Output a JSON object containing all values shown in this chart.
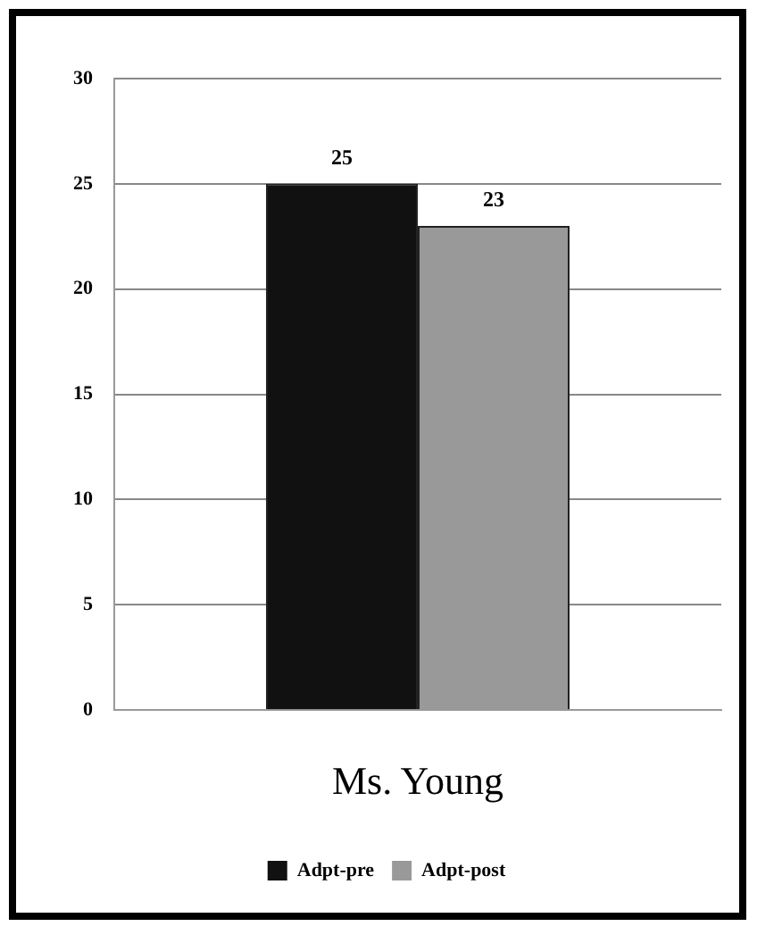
{
  "chart_data": {
    "type": "bar",
    "categories": [
      "Ms. Young"
    ],
    "series": [
      {
        "name": "Adpt-pre",
        "color": "#111111",
        "values": [
          25
        ]
      },
      {
        "name": "Adpt-post",
        "color": "#999999",
        "values": [
          23
        ]
      }
    ],
    "ylim": [
      0,
      30
    ],
    "yticks": [
      0,
      5,
      10,
      15,
      20,
      25,
      30
    ],
    "grid": "y",
    "legend": "bottom",
    "data_labels": true
  }
}
